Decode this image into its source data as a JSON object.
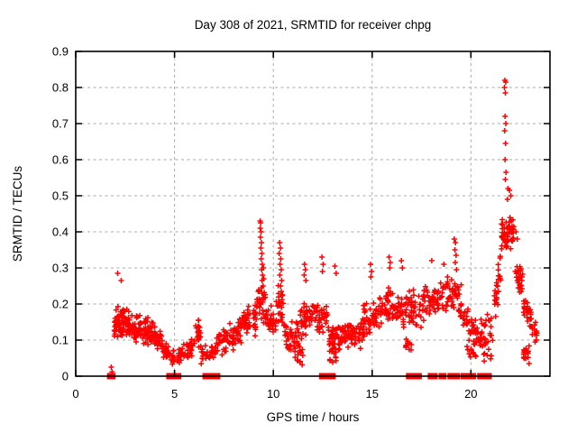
{
  "window": {
    "background": "#ffffff"
  },
  "chart_data": {
    "type": "scatter",
    "title": "Day 308 of 2021, SRMTID for receiver chpg",
    "xlabel": "GPS time / hours",
    "ylabel": "SRMTID / TECUs",
    "xlim": [
      0,
      24
    ],
    "ylim": [
      0,
      0.9
    ],
    "x_ticks": [
      0,
      5,
      10,
      15,
      20
    ],
    "x_tick_labels": [
      "0",
      "5",
      "10",
      "15",
      "20"
    ],
    "y_ticks": [
      0,
      0.1,
      0.2,
      0.3,
      0.4,
      0.5,
      0.6,
      0.7,
      0.8,
      0.9
    ],
    "y_tick_labels": [
      "0",
      "0.1",
      "0.2",
      "0.3",
      "0.4",
      "0.5",
      "0.6",
      "0.7",
      "0.8",
      "0.9"
    ],
    "grid": true,
    "legend": "none",
    "marker": "plus",
    "marker_color": "#ff0000",
    "clusters": [
      [
        1.95,
        2.65,
        0.14,
        0.16,
        0.05,
        70
      ],
      [
        2.65,
        3.35,
        0.145,
        0.13,
        0.045,
        60
      ],
      [
        3.35,
        3.95,
        0.125,
        0.115,
        0.048,
        50
      ],
      [
        3.95,
        4.35,
        0.12,
        0.1,
        0.04,
        30
      ],
      [
        4.35,
        4.75,
        0.085,
        0.06,
        0.03,
        25
      ],
      [
        4.75,
        5.3,
        0.05,
        0.055,
        0.025,
        22
      ],
      [
        5.3,
        6.0,
        0.065,
        0.075,
        0.032,
        35
      ],
      [
        6.0,
        6.35,
        0.11,
        0.12,
        0.048,
        22
      ],
      [
        6.35,
        7.1,
        0.06,
        0.065,
        0.028,
        30
      ],
      [
        7.1,
        7.75,
        0.085,
        0.1,
        0.038,
        32
      ],
      [
        7.75,
        8.4,
        0.11,
        0.125,
        0.045,
        42
      ],
      [
        8.4,
        9.15,
        0.14,
        0.16,
        0.05,
        48
      ],
      [
        9.15,
        9.6,
        0.22,
        0.2,
        0.07,
        30
      ],
      [
        9.6,
        10.15,
        0.165,
        0.155,
        0.05,
        32
      ],
      [
        10.15,
        10.55,
        0.2,
        0.18,
        0.06,
        26
      ],
      [
        10.55,
        11.35,
        0.125,
        0.105,
        0.05,
        45
      ],
      [
        11.1,
        11.5,
        0.05,
        0.05,
        0.03,
        12
      ],
      [
        11.35,
        11.95,
        0.15,
        0.165,
        0.055,
        38
      ],
      [
        11.95,
        12.75,
        0.17,
        0.16,
        0.06,
        42
      ],
      [
        12.75,
        13.45,
        0.105,
        0.1,
        0.042,
        45
      ],
      [
        12.85,
        13.2,
        0.05,
        0.05,
        0.025,
        8
      ],
      [
        13.45,
        14.55,
        0.115,
        0.12,
        0.045,
        70
      ],
      [
        14.55,
        15.35,
        0.15,
        0.17,
        0.055,
        45
      ],
      [
        15.35,
        16.35,
        0.19,
        0.185,
        0.058,
        55
      ],
      [
        16.35,
        17.55,
        0.185,
        0.19,
        0.06,
        60
      ],
      [
        16.6,
        17.0,
        0.08,
        0.08,
        0.03,
        10
      ],
      [
        17.55,
        18.45,
        0.2,
        0.21,
        0.055,
        48
      ],
      [
        18.45,
        19.15,
        0.22,
        0.23,
        0.055,
        40
      ],
      [
        19.15,
        19.55,
        0.23,
        0.2,
        0.06,
        22
      ],
      [
        19.55,
        20.25,
        0.16,
        0.12,
        0.05,
        35
      ],
      [
        19.8,
        20.3,
        0.07,
        0.07,
        0.03,
        10
      ],
      [
        20.25,
        21.15,
        0.11,
        0.13,
        0.05,
        38
      ],
      [
        20.6,
        21.1,
        0.06,
        0.06,
        0.025,
        8
      ],
      [
        21.15,
        21.55,
        0.2,
        0.3,
        0.065,
        25
      ],
      [
        21.55,
        22.2,
        0.4,
        0.4,
        0.055,
        60
      ],
      [
        22.2,
        22.65,
        0.3,
        0.25,
        0.05,
        28
      ],
      [
        22.65,
        23.05,
        0.2,
        0.16,
        0.05,
        24
      ],
      [
        22.65,
        22.95,
        0.065,
        0.06,
        0.03,
        16
      ],
      [
        23.05,
        23.35,
        0.14,
        0.115,
        0.035,
        14
      ]
    ],
    "points": [
      [
        1.8,
        0.025
      ],
      [
        1.84,
        0.012
      ],
      [
        2.12,
        0.285
      ],
      [
        2.3,
        0.265
      ],
      [
        9.33,
        0.43
      ],
      [
        9.36,
        0.425
      ],
      [
        9.34,
        0.41
      ],
      [
        9.38,
        0.4
      ],
      [
        9.35,
        0.385
      ],
      [
        9.4,
        0.37
      ],
      [
        9.37,
        0.355
      ],
      [
        9.42,
        0.34
      ],
      [
        9.39,
        0.325
      ],
      [
        9.44,
        0.31
      ],
      [
        9.41,
        0.295
      ],
      [
        9.46,
        0.28
      ],
      [
        9.43,
        0.265
      ],
      [
        9.48,
        0.25
      ],
      [
        9.5,
        0.3
      ],
      [
        9.52,
        0.27
      ],
      [
        10.32,
        0.37
      ],
      [
        10.36,
        0.355
      ],
      [
        10.3,
        0.34
      ],
      [
        10.38,
        0.325
      ],
      [
        10.34,
        0.31
      ],
      [
        10.4,
        0.295
      ],
      [
        10.33,
        0.28
      ],
      [
        10.42,
        0.265
      ],
      [
        10.37,
        0.25
      ],
      [
        11.58,
        0.31
      ],
      [
        11.62,
        0.295
      ],
      [
        11.56,
        0.28
      ],
      [
        11.65,
        0.265
      ],
      [
        12.46,
        0.33
      ],
      [
        12.52,
        0.31
      ],
      [
        12.49,
        0.29
      ],
      [
        13.12,
        0.305
      ],
      [
        13.18,
        0.285
      ],
      [
        14.92,
        0.31
      ],
      [
        14.97,
        0.29
      ],
      [
        14.94,
        0.275
      ],
      [
        15.86,
        0.33
      ],
      [
        15.92,
        0.315
      ],
      [
        15.89,
        0.3
      ],
      [
        16.48,
        0.32
      ],
      [
        16.53,
        0.3
      ],
      [
        18.02,
        0.32
      ],
      [
        18.63,
        0.31
      ],
      [
        19.16,
        0.38
      ],
      [
        19.22,
        0.37
      ],
      [
        19.19,
        0.35
      ],
      [
        19.25,
        0.335
      ],
      [
        19.21,
        0.315
      ],
      [
        19.27,
        0.295
      ],
      [
        21.72,
        0.82
      ],
      [
        21.76,
        0.815
      ],
      [
        21.7,
        0.8
      ],
      [
        21.74,
        0.785
      ],
      [
        21.73,
        0.72
      ],
      [
        21.77,
        0.7
      ],
      [
        21.71,
        0.68
      ],
      [
        21.75,
        0.645
      ],
      [
        21.73,
        0.6
      ],
      [
        21.78,
        0.565
      ],
      [
        21.74,
        0.545
      ],
      [
        21.88,
        0.52
      ],
      [
        21.95,
        0.515
      ],
      [
        22.02,
        0.5
      ],
      [
        21.85,
        0.49
      ],
      [
        22.28,
        0.4
      ],
      [
        22.35,
        0.38
      ],
      [
        23.3,
        0.1
      ],
      [
        23.32,
        0.125
      ]
    ],
    "zero_runs": [
      [
        1.72,
        1.88
      ],
      [
        4.72,
        4.97
      ],
      [
        5.05,
        5.2
      ],
      [
        6.55,
        6.92
      ],
      [
        6.98,
        7.18
      ],
      [
        12.45,
        12.72
      ],
      [
        12.78,
        13.02
      ],
      [
        16.85,
        17.15
      ],
      [
        17.2,
        17.38
      ],
      [
        17.95,
        18.18
      ],
      [
        18.5,
        18.62
      ],
      [
        18.95,
        19.3
      ],
      [
        19.6,
        19.78
      ],
      [
        19.98,
        20.12
      ],
      [
        20.45,
        20.68
      ],
      [
        20.72,
        20.92
      ]
    ],
    "colors": {
      "marker": "#ff0000",
      "grid": "#a8a8a8",
      "frame": "#000000",
      "text": "#000000",
      "background": "#ffffff"
    }
  }
}
